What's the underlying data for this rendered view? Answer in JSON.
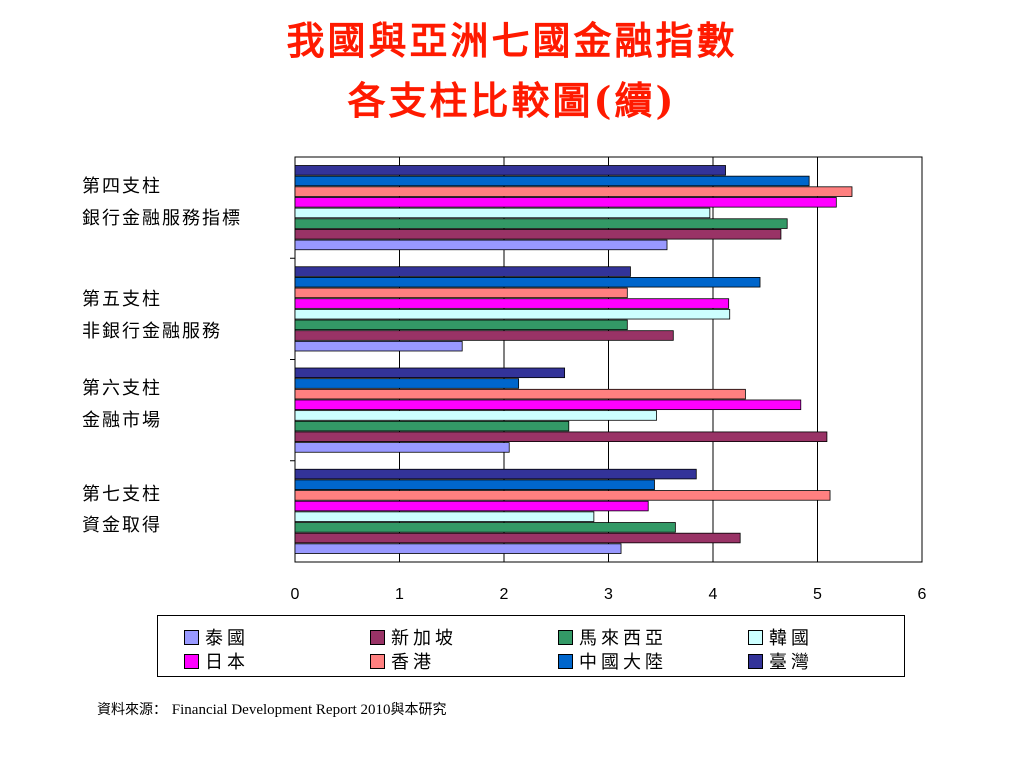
{
  "title_line1": "我國與亞洲七國金融指數",
  "title_line2": "各支柱比較圖(續)",
  "chart_data": {
    "type": "bar",
    "orientation": "horizontal",
    "categories": [
      {
        "line1": "第四支柱",
        "line2": "銀行金融服務指標"
      },
      {
        "line1": "第五支柱",
        "line2": "非銀行金融服務"
      },
      {
        "line1": "第六支柱",
        "line2": "金融市場"
      },
      {
        "line1": "第七支柱",
        "line2": "資金取得"
      }
    ],
    "series": [
      {
        "name": "臺灣",
        "color": "#333399",
        "values": [
          4.12,
          3.21,
          2.58,
          3.84
        ]
      },
      {
        "name": "中國大陸",
        "color": "#0066cc",
        "values": [
          4.92,
          4.45,
          2.14,
          3.44
        ]
      },
      {
        "name": "香港",
        "color": "#ff8080",
        "values": [
          5.33,
          3.18,
          4.31,
          5.12
        ]
      },
      {
        "name": "日本",
        "color": "#ff00ff",
        "values": [
          5.18,
          4.15,
          4.84,
          3.38
        ]
      },
      {
        "name": "韓國",
        "color": "#ccffff",
        "values": [
          3.97,
          4.16,
          3.46,
          2.86
        ]
      },
      {
        "name": "馬來西亞",
        "color": "#339966",
        "values": [
          4.71,
          3.18,
          2.62,
          3.64
        ]
      },
      {
        "name": "新加坡",
        "color": "#993366",
        "values": [
          4.65,
          3.62,
          5.09,
          4.26
        ]
      },
      {
        "name": "泰國",
        "color": "#9999ff",
        "values": [
          3.56,
          1.6,
          2.05,
          3.12
        ]
      }
    ],
    "xlim": [
      0,
      6
    ],
    "xticks": [
      "0",
      "1",
      "2",
      "3",
      "4",
      "5",
      "6"
    ],
    "grid": true,
    "legend_position": "bottom",
    "legend_order": [
      "泰國",
      "新加坡",
      "馬來西亞",
      "韓國",
      "日本",
      "香港",
      "中國大陸",
      "臺灣"
    ]
  },
  "source": {
    "label": "資料來源：",
    "text": "Financial Development Report 2010",
    "suffix": "與本研究"
  }
}
